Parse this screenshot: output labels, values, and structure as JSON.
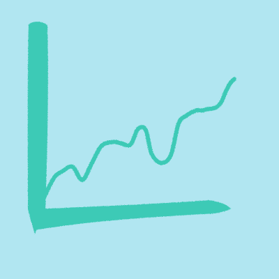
{
  "colors": {
    "background": "#b1e6f1",
    "ink": "#3ccab6"
  },
  "chart_data": {
    "type": "line",
    "style": "hand-drawn",
    "title": "",
    "xlabel": "",
    "ylabel": "",
    "grid": false,
    "legend": "none",
    "xlim": [
      0,
      100
    ],
    "ylim": [
      0,
      100
    ],
    "series": [
      {
        "x": [
          0,
          6,
          11,
          16,
          21,
          26,
          31,
          37,
          41,
          46,
          50,
          54,
          57,
          62,
          67,
          71,
          75,
          80,
          83,
          86,
          90,
          93,
          96,
          98,
          100
        ],
        "values": [
          0,
          18,
          24,
          27,
          17,
          30,
          43,
          46,
          45,
          44,
          56,
          55,
          37,
          30,
          36,
          60,
          66,
          70,
          70,
          71,
          72,
          76,
          86,
          91,
          94
        ]
      }
    ]
  }
}
